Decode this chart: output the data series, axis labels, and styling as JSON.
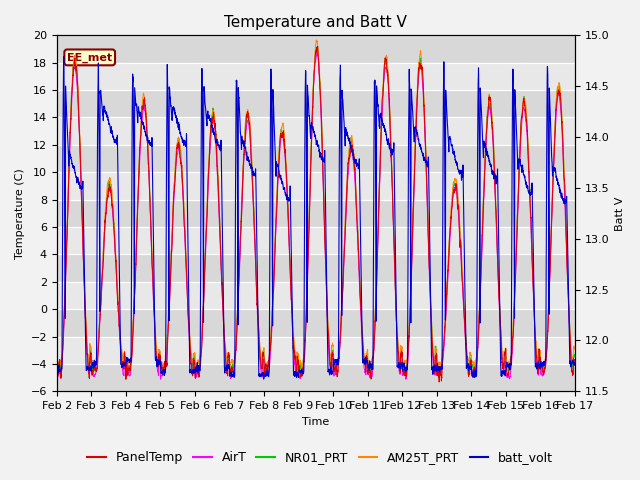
{
  "title": "Temperature and Batt V",
  "xlabel": "Time",
  "ylabel_left": "Temperature (C)",
  "ylabel_right": "Batt V",
  "ylim_left": [
    -6,
    20
  ],
  "ylim_right": [
    11.5,
    15.0
  ],
  "yticks_left": [
    -6,
    -4,
    -2,
    0,
    2,
    4,
    6,
    8,
    10,
    12,
    14,
    16,
    18,
    20
  ],
  "yticks_right": [
    11.5,
    12.0,
    12.5,
    13.0,
    13.5,
    14.0,
    14.5,
    15.0
  ],
  "station_label": "EE_met",
  "legend_entries": [
    "PanelTemp",
    "AirT",
    "NR01_PRT",
    "AM25T_PRT",
    "batt_volt"
  ],
  "legend_colors": [
    "#dd0000",
    "#ff00ff",
    "#00cc00",
    "#ff8800",
    "#0000cc"
  ],
  "background_color": "#e0e0e0",
  "grid_color": "#ffffff",
  "title_fontsize": 11,
  "label_fontsize": 8,
  "tick_fontsize": 8,
  "legend_fontsize": 9,
  "xticklabels": [
    "Feb 2",
    "Feb 3",
    "Feb 4",
    "Feb 5",
    "Feb 6",
    "Feb 7",
    "Feb 8",
    "Feb 9",
    "Feb 10",
    "Feb 11",
    "Feb 12",
    "Feb 13",
    "Feb 14",
    "Feb 15",
    "Feb 16",
    "Feb 17"
  ],
  "n_days": 15,
  "pts_per_day": 240
}
